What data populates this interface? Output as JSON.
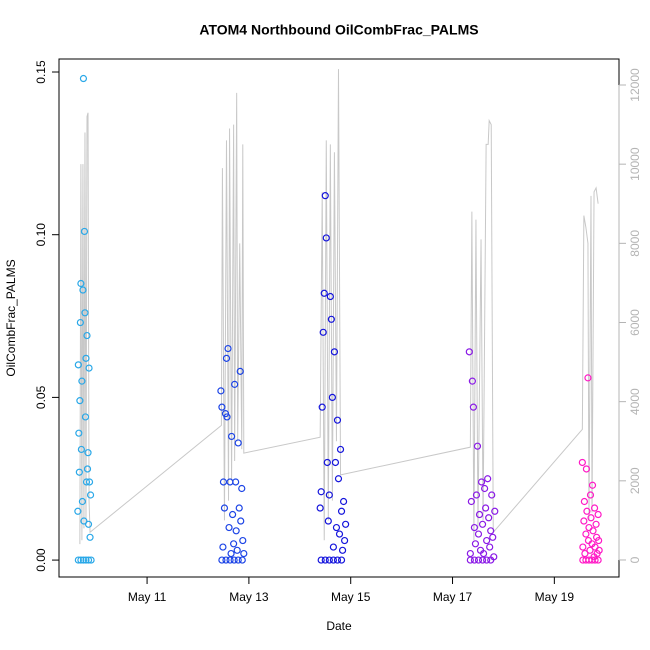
{
  "chart_data": {
    "type": "scatter",
    "title": "ATOM4 Northbound OilCombFrac_PALMS",
    "x_label": "Date",
    "y_label": "OilCombFrac_PALMS",
    "xlim": [
      9.27,
      20.27
    ],
    "xticks": [
      {
        "value": 11,
        "label": "May 11"
      },
      {
        "value": 13,
        "label": "May 13"
      },
      {
        "value": 15,
        "label": "May 15"
      },
      {
        "value": 17,
        "label": "May 17"
      },
      {
        "value": 19,
        "label": "May 19"
      }
    ],
    "ylim": [
      -0.0052,
      0.154
    ],
    "yticks": [
      {
        "value": 0,
        "label": "0.00"
      },
      0.05,
      {
        "value": 0.1,
        "label": "0.10"
      },
      0.15
    ],
    "y2lim": [
      -430,
      12657
    ],
    "y2ticks": [
      0,
      2000,
      4000,
      6000,
      8000,
      10000,
      12000
    ],
    "series": [
      {
        "color": "#2aa8e8",
        "x": [
          9.64,
          9.65,
          9.66,
          9.67,
          9.68,
          9.69,
          9.7,
          9.71,
          9.72,
          9.73,
          9.74,
          9.75,
          9.76,
          9.77,
          9.78,
          9.79,
          9.8,
          9.81,
          9.82,
          9.83,
          9.84,
          9.85,
          9.86,
          9.87,
          9.88,
          9.89,
          9.65,
          9.7,
          9.75,
          9.8,
          9.85,
          9.9
        ],
        "values": [
          0.015,
          0.06,
          0.039,
          0.027,
          0.049,
          0.073,
          0.085,
          0.034,
          0.055,
          0.018,
          0.083,
          0.148,
          0.012,
          0.101,
          0.076,
          0.044,
          0.062,
          0.024,
          0.069,
          0.028,
          0.033,
          0.011,
          0.059,
          0.024,
          0.007,
          0.02,
          0,
          0,
          0,
          0,
          0,
          0
        ]
      },
      {
        "color": "#1c44e6",
        "x": [
          12.45,
          12.47,
          12.49,
          12.5,
          12.52,
          12.54,
          12.56,
          12.57,
          12.59,
          12.61,
          12.63,
          12.65,
          12.66,
          12.68,
          12.7,
          12.72,
          12.74,
          12.75,
          12.77,
          12.79,
          12.81,
          12.83,
          12.84,
          12.86,
          12.88,
          12.9,
          12.47,
          12.55,
          12.63,
          12.71,
          12.79,
          12.87
        ],
        "values": [
          0.052,
          0.047,
          0.004,
          0.024,
          0.016,
          0.045,
          0.062,
          0.044,
          0.065,
          0.01,
          0.024,
          0.002,
          0.038,
          0.014,
          0.005,
          0.054,
          0.024,
          0.009,
          0.003,
          0.036,
          0.016,
          0.058,
          0.012,
          0.022,
          0.006,
          0.002,
          0,
          0,
          0,
          0,
          0,
          0
        ]
      },
      {
        "color": "#1414dc",
        "x": [
          14.4,
          14.42,
          14.44,
          14.46,
          14.48,
          14.5,
          14.52,
          14.54,
          14.56,
          14.58,
          14.6,
          14.62,
          14.64,
          14.66,
          14.68,
          14.7,
          14.72,
          14.74,
          14.76,
          14.78,
          14.8,
          14.82,
          14.84,
          14.86,
          14.88,
          14.9,
          14.42,
          14.5,
          14.58,
          14.66,
          14.74,
          14.82
        ],
        "values": [
          0.016,
          0.021,
          0.047,
          0.07,
          0.082,
          0.112,
          0.099,
          0.03,
          0.012,
          0.02,
          0.081,
          0.074,
          0.05,
          0.004,
          0.064,
          0.03,
          0.01,
          0.043,
          0.025,
          0.008,
          0.034,
          0.015,
          0.003,
          0.018,
          0.006,
          0.011,
          0,
          0,
          0,
          0,
          0,
          0
        ]
      },
      {
        "color": "#8a1ae6",
        "x": [
          17.33,
          17.35,
          17.37,
          17.39,
          17.41,
          17.43,
          17.45,
          17.47,
          17.49,
          17.51,
          17.53,
          17.55,
          17.57,
          17.59,
          17.61,
          17.63,
          17.65,
          17.67,
          17.69,
          17.71,
          17.73,
          17.75,
          17.77,
          17.79,
          17.81,
          17.83,
          17.35,
          17.43,
          17.51,
          17.59,
          17.67,
          17.75
        ],
        "values": [
          0.064,
          0.002,
          0.018,
          0.055,
          0.047,
          0.01,
          0.005,
          0.02,
          0.035,
          0.008,
          0.014,
          0.003,
          0.024,
          0.011,
          0.002,
          0.022,
          0.016,
          0.006,
          0.025,
          0.013,
          0.004,
          0.009,
          0.02,
          0.007,
          0.001,
          0.015,
          0,
          0,
          0,
          0,
          0,
          0
        ]
      },
      {
        "color": "#ff1ac6",
        "x": [
          19.55,
          19.56,
          19.58,
          19.59,
          19.6,
          19.62,
          19.63,
          19.64,
          19.66,
          19.67,
          19.68,
          19.7,
          19.71,
          19.72,
          19.74,
          19.75,
          19.76,
          19.78,
          19.79,
          19.8,
          19.82,
          19.83,
          19.84,
          19.86,
          19.87,
          19.88,
          19.56,
          19.62,
          19.68,
          19.74,
          19.8,
          19.86
        ],
        "values": [
          0.03,
          0.004,
          0.012,
          0.018,
          0.002,
          0.008,
          0.028,
          0.015,
          0.056,
          0.006,
          0.01,
          0.003,
          0.02,
          0.013,
          0.005,
          0.023,
          0.009,
          0.001,
          0.016,
          0.004,
          0.011,
          0.007,
          0.002,
          0.014,
          0.006,
          0.003,
          0,
          0,
          0,
          0,
          0,
          0
        ]
      },
      {
        "type": "line",
        "axis": "y2",
        "color": "#c8c8c8",
        "x": [
          9.68,
          9.7,
          9.72,
          9.74,
          9.76,
          9.78,
          9.8,
          9.82,
          9.84,
          9.86,
          9.88,
          12.46,
          12.48,
          12.52,
          12.56,
          12.6,
          12.62,
          12.66,
          12.7,
          12.72,
          12.76,
          12.78,
          12.82,
          12.86,
          12.88,
          12.9,
          14.4,
          14.44,
          14.48,
          14.52,
          14.56,
          14.6,
          14.64,
          14.68,
          14.72,
          14.76,
          14.8,
          17.35,
          17.38,
          17.42,
          17.46,
          17.5,
          17.56,
          17.6,
          17.66,
          17.7,
          17.72,
          17.76,
          17.8,
          19.55,
          19.58,
          19.62,
          19.66,
          19.68,
          19.72,
          19.74,
          19.78,
          19.82,
          19.86
        ],
        "values": [
          400,
          10000,
          500,
          10000,
          800,
          10800,
          900,
          11200,
          11300,
          1500,
          700,
          3400,
          9900,
          1000,
          10600,
          1500,
          10900,
          2000,
          11000,
          2500,
          11800,
          3000,
          8000,
          2800,
          10500,
          2700,
          3100,
          9300,
          500,
          10600,
          1000,
          10500,
          1500,
          10300,
          3000,
          12400,
          2150,
          2850,
          8800,
          500,
          8600,
          800,
          8100,
          1000,
          10500,
          10500,
          11100,
          11000,
          700,
          3300,
          8700,
          8400,
          8000,
          1000,
          9200,
          1200,
          9300,
          9400,
          9000
        ]
      }
    ]
  }
}
